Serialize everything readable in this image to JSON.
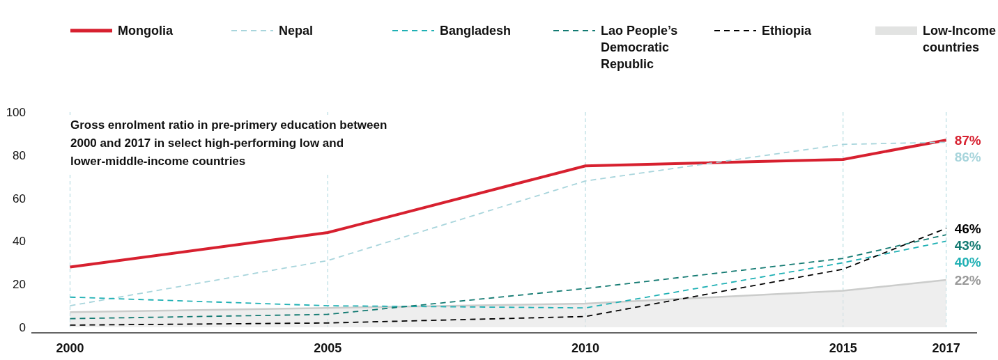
{
  "chart_data": {
    "type": "line",
    "title": "Gross enrolment ratio in pre-primery education between 2000 and 2017 in select high-performing low and lower-middle-income countries",
    "x": [
      2000,
      2005,
      2010,
      2015,
      2017
    ],
    "series": [
      {
        "name": "Mongolia",
        "color": "#d7202f",
        "line_style": "solid",
        "values": [
          28,
          44,
          75,
          78,
          87
        ],
        "value_labels": [
          null,
          null,
          null,
          null,
          "87%"
        ]
      },
      {
        "name": "Nepal",
        "color": "#a8d5dc",
        "line_style": "dashed",
        "values": [
          10,
          31,
          68,
          85,
          86
        ],
        "value_labels": [
          null,
          null,
          null,
          null,
          "86%"
        ]
      },
      {
        "name": "Bangladesh",
        "color": "#1fb0b4",
        "line_style": "dashed",
        "values": [
          14,
          10,
          9,
          30,
          40
        ],
        "value_labels": [
          null,
          null,
          null,
          null,
          "40%"
        ]
      },
      {
        "name": "Lao People’s Democratic Republic",
        "color": "#137a72",
        "line_style": "dashed",
        "values": [
          4,
          6,
          18,
          32,
          43
        ],
        "value_labels": [
          null,
          null,
          null,
          null,
          "43%"
        ]
      },
      {
        "name": "Ethiopia",
        "color": "#000000",
        "line_style": "dashed",
        "values": [
          1,
          2,
          5,
          27,
          46
        ],
        "value_labels": [
          null,
          null,
          null,
          null,
          "46%"
        ]
      },
      {
        "name": "Low-Income countries",
        "type": "area",
        "color": "#e2e3e2",
        "values": [
          7,
          9,
          11,
          17,
          22
        ],
        "value_labels": [
          null,
          null,
          null,
          null,
          "22%"
        ]
      }
    ],
    "xlim": [
      1999.25,
      2017.6
    ],
    "xticks": [
      2000,
      2005,
      2010,
      2015,
      2017
    ],
    "ylim": [
      0,
      100
    ],
    "yticks": [
      0,
      20,
      40,
      60,
      80,
      100
    ],
    "grid": "x",
    "legend": "top"
  }
}
